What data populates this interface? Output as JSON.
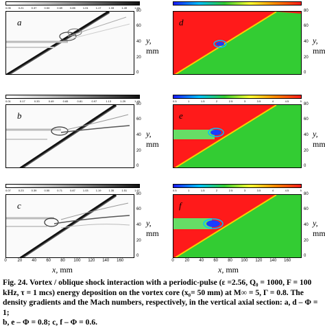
{
  "figure": {
    "panel_labels": [
      "a",
      "b",
      "c",
      "d",
      "e",
      "f"
    ],
    "y_axis": {
      "symbol": "y,",
      "unit": "mm",
      "ticks": [
        "80",
        "60",
        "40",
        "20",
        "0"
      ]
    },
    "x_axis": {
      "symbol": "x,",
      "unit": "mm",
      "ticks": [
        "0",
        "20",
        "40",
        "60",
        "80",
        "100",
        "120",
        "140",
        "160"
      ]
    },
    "density_colorbar_b": [
      "0.01",
      "0.17",
      "0.33",
      "0.49",
      "0.65",
      "0.81",
      "0.97",
      "1.13",
      "1.29",
      "1.45"
    ],
    "density_colorbar_c": [
      "0.07",
      "0.23",
      "0.39",
      "0.55",
      "0.71",
      "0.87",
      "1.03",
      "1.19",
      "1.35",
      "1.51",
      "1.67"
    ],
    "density_colorbar_a": [
      "0.05",
      "0.21",
      "0.37",
      "0.53",
      "0.69",
      "0.85",
      "1.01",
      "1.17",
      "1.33",
      "1.49",
      "1.65"
    ],
    "mach_colorbar": [
      "0.5",
      "1",
      "1.5",
      "2",
      "2.5",
      "3",
      "3.5",
      "4",
      "4.5",
      "5"
    ],
    "colors": {
      "mach_high": "#ff1a1a",
      "mach_mid": "#33cc33",
      "mach_low": "#1a3cff",
      "shock_gray": "#111111"
    }
  },
  "caption": {
    "line1": "Fig. 24. Vortex / oblique shock interaction with a periodic-pulse (ε =2.56, Q₀ = 1000, F = 100",
    "line2": "kHz, τ = 1 mcs) energy deposition on the vortex core (x₀= 50 mm) at M∞ = 5, Γ = 0.8. The",
    "line3": "density gradients and the Mach numbers, respectively, in the vertical axial section: a, d – Φ = 1;",
    "line4": "b, e – Φ = 0.8; c, f – Φ = 0.6."
  }
}
